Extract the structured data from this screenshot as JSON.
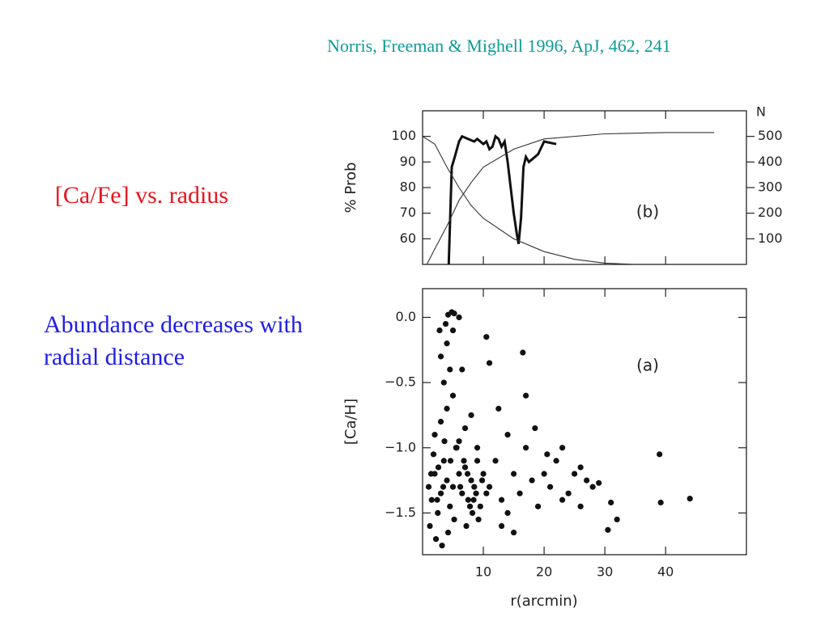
{
  "citation": "Norris, Freeman & Mighell 1996, ApJ, 462, 241",
  "heading": "[Ca/Fe] vs. radius",
  "note": "Abundance decreases with radial distance",
  "chart_data": [
    {
      "type": "line",
      "panel_label": "(b)",
      "ylabel": "% Prob",
      "y2label": "N",
      "xlim": [
        0,
        53.3
      ],
      "xticks": [
        10,
        20,
        30,
        40
      ],
      "ylim": [
        50,
        110
      ],
      "yticks": [
        60,
        70,
        80,
        90,
        100
      ],
      "y2lim": [
        0,
        600
      ],
      "y2ticks": [
        100,
        200,
        300,
        400,
        500
      ],
      "series": [
        {
          "color": "#111111",
          "x": [
            4.3,
            4.8,
            5.3,
            6,
            6.5,
            7.5,
            8.5,
            9,
            10,
            10.5,
            11,
            11.5,
            12,
            12.5,
            13,
            13.5,
            14,
            14.5,
            15,
            15.5,
            15.8,
            16.2,
            16.6,
            17,
            17.5,
            18,
            19,
            20,
            22
          ],
          "values": [
            50,
            88,
            92,
            98,
            100,
            99,
            98,
            99,
            97,
            98,
            95,
            96,
            100,
            99,
            96,
            98,
            90,
            80,
            70,
            62,
            58,
            68,
            88,
            92,
            90,
            91,
            93,
            98,
            97
          ]
        },
        {
          "color": "#333333",
          "axis": "y2",
          "x": [
            0.7,
            2,
            4,
            6,
            8,
            10,
            15,
            20,
            30,
            40,
            48
          ],
          "values": [
            0,
            60,
            150,
            250,
            320,
            380,
            450,
            490,
            510,
            515,
            515
          ]
        },
        {
          "color": "#333333",
          "x": [
            0,
            2,
            4,
            6,
            8,
            10,
            15,
            20,
            25,
            30,
            35
          ],
          "values": [
            100,
            97,
            88,
            80,
            73,
            68,
            60,
            55,
            52,
            50.5,
            50
          ]
        }
      ]
    },
    {
      "type": "scatter",
      "panel_label": "(a)",
      "xlabel": "r(arcmin)",
      "ylabel": "[Ca/H]",
      "xlim": [
        0,
        53.3
      ],
      "xticks": [
        10,
        20,
        30,
        40
      ],
      "ylim": [
        -1.82,
        0.22
      ],
      "yticks": [
        {
          "value": 0,
          "label": "0.0"
        },
        {
          "value": -0.5,
          "label": "−0.5"
        },
        {
          "value": -1,
          "label": "−1.0"
        },
        {
          "value": -1.5,
          "label": "−1.5"
        }
      ],
      "color": "#111111",
      "x": [
        1,
        1.5,
        2,
        2.5,
        3,
        3.5,
        4,
        4.5,
        5,
        5.5,
        6,
        6.5,
        7,
        7.5,
        8,
        8.5,
        9,
        9.5,
        10,
        10.5,
        2,
        3,
        4,
        5,
        6,
        7,
        8,
        9,
        3.5,
        4.5,
        3,
        4,
        5,
        6,
        4.2,
        4.8,
        3.8,
        5.2,
        2.8,
        6.5,
        11,
        12,
        13,
        14,
        15,
        16,
        17,
        18,
        19,
        20,
        21,
        22,
        23,
        24,
        25,
        26,
        27,
        28,
        29,
        31,
        10.5,
        16.5,
        17,
        11,
        12.5,
        14,
        18.5,
        20.5,
        23,
        26,
        30.5,
        32,
        39,
        39.2,
        44,
        1.2,
        2.2,
        3.2,
        4.2,
        5.2,
        7.2,
        8.2,
        9.2,
        13,
        15,
        1.8,
        2.6,
        3.6,
        4.6,
        5.6,
        6.2,
        7.8,
        8.8,
        9.8,
        1.4,
        2.4,
        3.4,
        6.8,
        7.4,
        8.4
      ],
      "values": [
        -1.3,
        -1.4,
        -1.2,
        -1.5,
        -1.35,
        -1.1,
        -1.25,
        -1.45,
        -1.3,
        -1.0,
        -1.2,
        -1.35,
        -1.15,
        -1.4,
        -1.25,
        -1.3,
        -1.1,
        -1.45,
        -1.2,
        -1.35,
        -0.9,
        -0.8,
        -0.7,
        -0.6,
        -0.95,
        -0.85,
        -0.75,
        -1.0,
        -0.5,
        -0.4,
        -0.3,
        -0.2,
        -0.1,
        0.0,
        0.02,
        0.04,
        -0.05,
        0.03,
        -0.1,
        -0.4,
        -1.3,
        -1.1,
        -1.4,
        -1.5,
        -1.2,
        -1.35,
        -1.0,
        -1.25,
        -1.45,
        -1.2,
        -1.3,
        -1.1,
        -1.4,
        -1.35,
        -1.2,
        -1.45,
        -1.25,
        -1.3,
        -1.27,
        -1.42,
        -0.15,
        -0.27,
        -0.6,
        -0.35,
        -0.7,
        -0.9,
        -0.85,
        -1.05,
        -1.0,
        -1.15,
        -1.63,
        -1.55,
        -1.05,
        -1.42,
        -1.39,
        -1.6,
        -1.7,
        -1.75,
        -1.65,
        -1.55,
        -1.6,
        -1.5,
        -1.55,
        -1.6,
        -1.65,
        -1.05,
        -1.15,
        -0.95,
        -1.1,
        -1.0,
        -1.3,
        -1.45,
        -1.35,
        -1.25,
        -1.2,
        -1.4,
        -1.3,
        -1.1,
        -1.2,
        -1.4
      ]
    }
  ]
}
